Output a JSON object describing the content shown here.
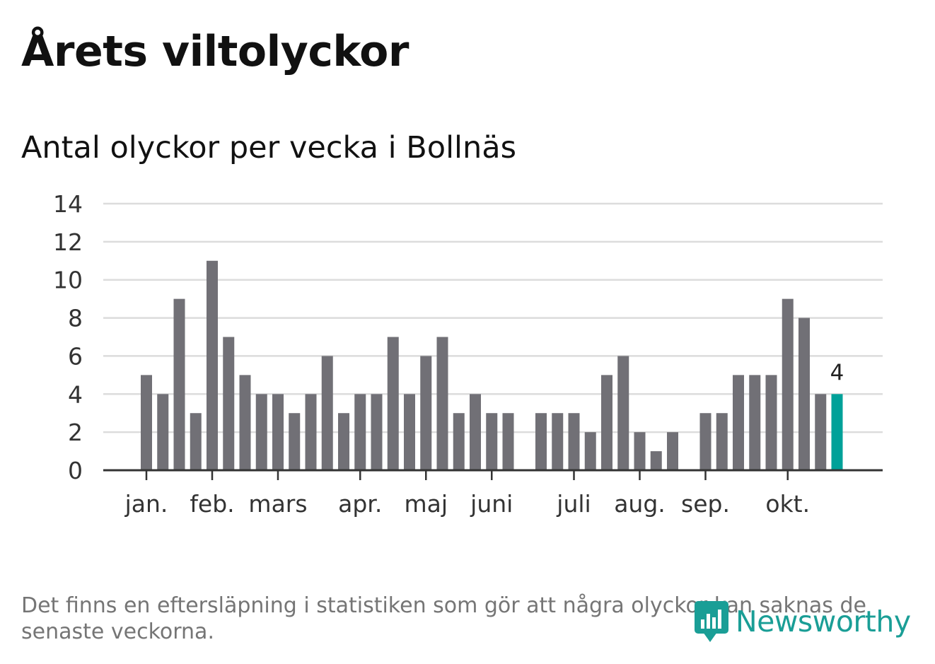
{
  "title": "Årets viltolyckor",
  "subtitle": "Antal olyckor per vecka i Bollnäs",
  "footnote": "Det finns en eftersläpning i statistiken som gör att några olyckor kan saknas de senaste veckorna.",
  "brand": {
    "name": "Newsworthy",
    "icon": "newsworthy-logo-icon",
    "color": "#1a9e96"
  },
  "chart_data": {
    "type": "bar",
    "title": "Antal olyckor per vecka i Bollnäs",
    "xlabel": "",
    "ylabel": "",
    "ylim": [
      0,
      14
    ],
    "yticks": [
      0,
      2,
      4,
      6,
      8,
      10,
      12,
      14
    ],
    "grid": true,
    "bar_color": "#717076",
    "highlight_color": "#00a199",
    "values": [
      5,
      4,
      9,
      3,
      11,
      7,
      5,
      4,
      4,
      3,
      4,
      6,
      3,
      4,
      4,
      7,
      4,
      6,
      7,
      3,
      4,
      3,
      3,
      0,
      3,
      3,
      3,
      2,
      5,
      6,
      2,
      1,
      2,
      0,
      3,
      3,
      5,
      5,
      5,
      9,
      8,
      4,
      4
    ],
    "highlight_index": 42,
    "data_label": {
      "index": 42,
      "text": "4"
    },
    "month_ticks": [
      {
        "label": "jan.",
        "week_index": 0
      },
      {
        "label": "feb.",
        "week_index": 4
      },
      {
        "label": "mars",
        "week_index": 8
      },
      {
        "label": "apr.",
        "week_index": 13
      },
      {
        "label": "maj",
        "week_index": 17
      },
      {
        "label": "juni",
        "week_index": 21
      },
      {
        "label": "juli",
        "week_index": 26
      },
      {
        "label": "aug.",
        "week_index": 30
      },
      {
        "label": "sep.",
        "week_index": 34
      },
      {
        "label": "okt.",
        "week_index": 39
      }
    ]
  }
}
